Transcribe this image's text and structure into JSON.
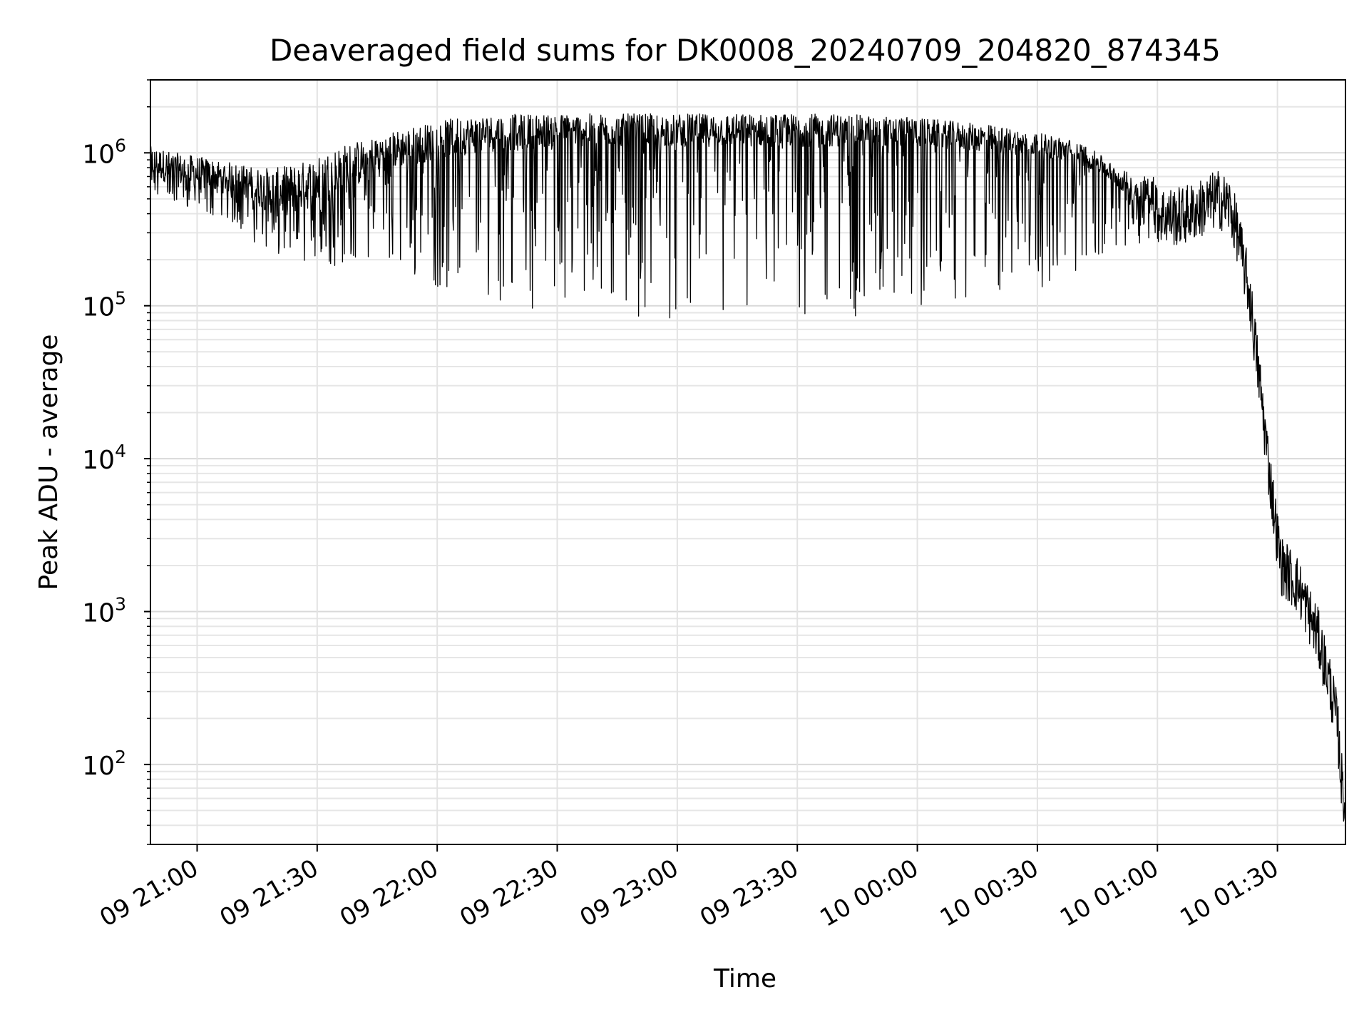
{
  "chart_data": {
    "type": "line",
    "title": "Deaveraged field sums for DK0008_20240709_204820_874345",
    "xlabel": "Time",
    "ylabel": "Peak ADU - average",
    "x_scale": "time",
    "y_scale": "log",
    "xlim": [
      "2024-07-09 20:48:20",
      "2024-07-10 01:47:00"
    ],
    "ylim": [
      30,
      3000000
    ],
    "grid": true,
    "legend": "none",
    "line_color": "#000000",
    "x_ticks": [
      {
        "label": "09 21:00",
        "time": "2024-07-09 21:00"
      },
      {
        "label": "09 21:30",
        "time": "2024-07-09 21:30"
      },
      {
        "label": "09 22:00",
        "time": "2024-07-09 22:00"
      },
      {
        "label": "09 22:30",
        "time": "2024-07-09 22:30"
      },
      {
        "label": "09 23:00",
        "time": "2024-07-09 23:00"
      },
      {
        "label": "09 23:30",
        "time": "2024-07-09 23:30"
      },
      {
        "label": "10 00:00",
        "time": "2024-07-10 00:00"
      },
      {
        "label": "10 00:30",
        "time": "2024-07-10 00:30"
      },
      {
        "label": "10 01:00",
        "time": "2024-07-10 01:00"
      },
      {
        "label": "10 01:30",
        "time": "2024-07-10 01:30"
      }
    ],
    "y_ticks": [
      {
        "value": 100,
        "base": "10",
        "exp": "2"
      },
      {
        "value": 1000,
        "base": "10",
        "exp": "3"
      },
      {
        "value": 10000,
        "base": "10",
        "exp": "4"
      },
      {
        "value": 100000,
        "base": "10",
        "exp": "5"
      },
      {
        "value": 1000000,
        "base": "10",
        "exp": "6"
      }
    ],
    "series": [
      {
        "x": [
          "2024-07-09 20:48:20",
          "2024-07-09 20:55",
          "2024-07-09 21:05",
          "2024-07-09 21:10",
          "2024-07-09 21:15",
          "2024-07-09 21:20",
          "2024-07-09 21:25",
          "2024-07-09 21:30",
          "2024-07-09 21:35",
          "2024-07-09 21:40",
          "2024-07-09 21:45",
          "2024-07-09 21:50",
          "2024-07-09 21:55",
          "2024-07-09 22:00",
          "2024-07-09 22:05",
          "2024-07-09 22:10",
          "2024-07-09 22:20",
          "2024-07-09 22:30",
          "2024-07-09 22:40",
          "2024-07-09 22:50",
          "2024-07-09 23:00",
          "2024-07-09 23:10",
          "2024-07-09 23:20",
          "2024-07-09 23:30",
          "2024-07-09 23:40",
          "2024-07-09 23:50",
          "2024-07-10 00:00",
          "2024-07-10 00:10",
          "2024-07-10 00:20",
          "2024-07-10 00:30",
          "2024-07-10 00:40",
          "2024-07-10 00:45",
          "2024-07-10 00:50",
          "2024-07-10 00:55",
          "2024-07-10 01:00",
          "2024-07-10 01:05",
          "2024-07-10 01:10",
          "2024-07-10 01:15",
          "2024-07-10 01:18",
          "2024-07-10 01:20",
          "2024-07-10 01:23",
          "2024-07-10 01:26",
          "2024-07-10 01:28",
          "2024-07-10 01:30",
          "2024-07-10 01:31",
          "2024-07-10 01:35",
          "2024-07-10 01:40",
          "2024-07-10 01:43",
          "2024-07-10 01:45",
          "2024-07-10 01:46",
          "2024-07-10 01:47"
        ],
        "y": [
          700000,
          600000,
          550000,
          550000,
          450000,
          380000,
          400000,
          450000,
          500000,
          600000,
          750000,
          800000,
          850000,
          900000,
          950000,
          1000000,
          1050000,
          1100000,
          1100000,
          1100000,
          1100000,
          1100000,
          1100000,
          1100000,
          1100000,
          1100000,
          1100000,
          1050000,
          1000000,
          950000,
          850000,
          750000,
          600000,
          450000,
          400000,
          380000,
          420000,
          500000,
          450000,
          300000,
          120000,
          25000,
          8000,
          3000,
          2000,
          1500,
          700,
          350,
          180,
          80,
          50
        ],
        "min_envelope": [
          500000,
          450000,
          380000,
          330000,
          250000,
          200000,
          180000,
          170000,
          180000,
          200000,
          200000,
          170000,
          140000,
          130000,
          120000,
          120000,
          100000,
          90000,
          95000,
          85000,
          80000,
          75000,
          70000,
          75000,
          80000,
          85000,
          90000,
          100000,
          110000,
          130000,
          150000,
          180000,
          220000,
          250000,
          300000
        ],
        "max_envelope": [
          1100000,
          1000000,
          900000,
          850000,
          800000,
          800000,
          850000,
          950000,
          1100000,
          1200000,
          1300000,
          1400000,
          1500000,
          1600000,
          1700000,
          1750000,
          1800000,
          1800000,
          1800000,
          1800000,
          1800000,
          1800000,
          1800000,
          1800000,
          1800000,
          1750000,
          1700000,
          1600000,
          1500000,
          1350000,
          1200000,
          1000000,
          800000,
          700000,
          750000
        ]
      }
    ]
  }
}
